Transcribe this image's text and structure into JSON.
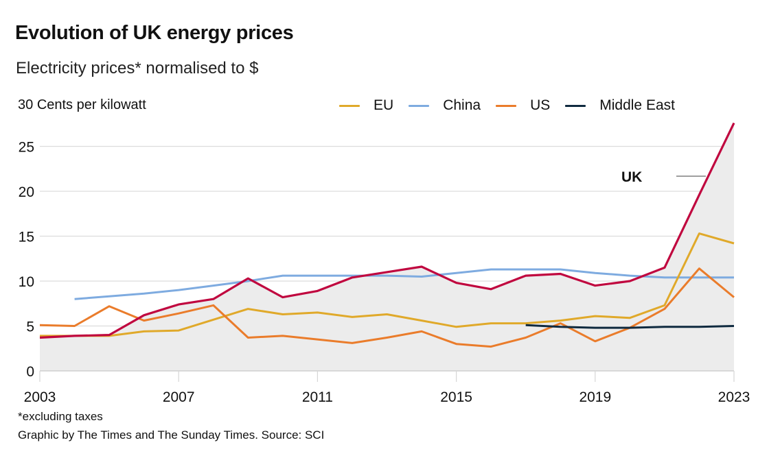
{
  "chart_data": {
    "type": "line",
    "title": "Evolution of UK energy prices",
    "subtitle": "Electricity prices* normalised to $",
    "ylabel": "Cents per kilowatt",
    "xlabel": "",
    "x": [
      2003,
      2004,
      2005,
      2006,
      2007,
      2008,
      2009,
      2010,
      2011,
      2012,
      2013,
      2014,
      2015,
      2016,
      2017,
      2018,
      2019,
      2020,
      2021,
      2022,
      2023
    ],
    "xlim": [
      2003,
      2023
    ],
    "ylim": [
      0,
      30
    ],
    "x_ticks": [
      "2003",
      "2007",
      "2011",
      "2015",
      "2019",
      "2023"
    ],
    "y_ticks": [
      "0",
      "5",
      "10",
      "15",
      "20",
      "25",
      "30"
    ],
    "grid": "horizontal",
    "legend_position": "top-right",
    "series": [
      {
        "name": "UK",
        "color": "#c0073f",
        "area_fill": "#ececec",
        "values": [
          3.7,
          3.9,
          4.0,
          6.2,
          7.4,
          8.0,
          10.3,
          8.2,
          8.9,
          10.4,
          11.0,
          11.6,
          9.8,
          9.1,
          10.6,
          10.8,
          9.5,
          10.0,
          11.5,
          19.6,
          27.6
        ]
      },
      {
        "name": "EU",
        "color": "#e0a92a",
        "values": [
          3.9,
          3.9,
          3.9,
          4.4,
          4.5,
          5.7,
          6.9,
          6.3,
          6.5,
          6.0,
          6.3,
          5.6,
          4.9,
          5.3,
          5.3,
          5.6,
          6.1,
          5.9,
          7.3,
          15.3,
          14.2
        ]
      },
      {
        "name": "China",
        "color": "#7eabe0",
        "values": [
          null,
          8.0,
          8.3,
          8.6,
          9.0,
          9.5,
          10.0,
          10.6,
          10.6,
          10.6,
          10.6,
          10.5,
          10.9,
          11.3,
          11.3,
          11.3,
          10.9,
          10.6,
          10.4,
          10.4,
          10.4
        ]
      },
      {
        "name": "US",
        "color": "#ea7c2b",
        "values": [
          5.1,
          5.0,
          7.2,
          5.6,
          6.4,
          7.3,
          3.7,
          3.9,
          3.5,
          3.1,
          3.7,
          4.4,
          3.0,
          2.7,
          3.7,
          5.3,
          3.3,
          4.8,
          6.9,
          11.4,
          8.2
        ]
      },
      {
        "name": "Middle East",
        "color": "#0f2a3f",
        "values": [
          null,
          null,
          null,
          null,
          null,
          null,
          null,
          null,
          null,
          null,
          null,
          null,
          null,
          null,
          5.1,
          4.9,
          4.8,
          4.8,
          4.9,
          4.9,
          5.0
        ]
      }
    ],
    "annotations": [
      {
        "text": "UK",
        "series": "UK"
      }
    ]
  },
  "header": {
    "title": "Evolution of UK energy prices",
    "subtitle": "Electricity prices* normalised to $",
    "y_axis_label": "Cents per kilowatt",
    "y_axis_top_value": "30"
  },
  "legend": [
    {
      "label": "EU",
      "color": "#e0a92a"
    },
    {
      "label": "China",
      "color": "#7eabe0"
    },
    {
      "label": "US",
      "color": "#ea7c2b"
    },
    {
      "label": "Middle East",
      "color": "#0f2a3f"
    }
  ],
  "footer": {
    "footnote": "*excluding taxes",
    "source": "Graphic by The Times and The Sunday Times. Source: SCI"
  }
}
